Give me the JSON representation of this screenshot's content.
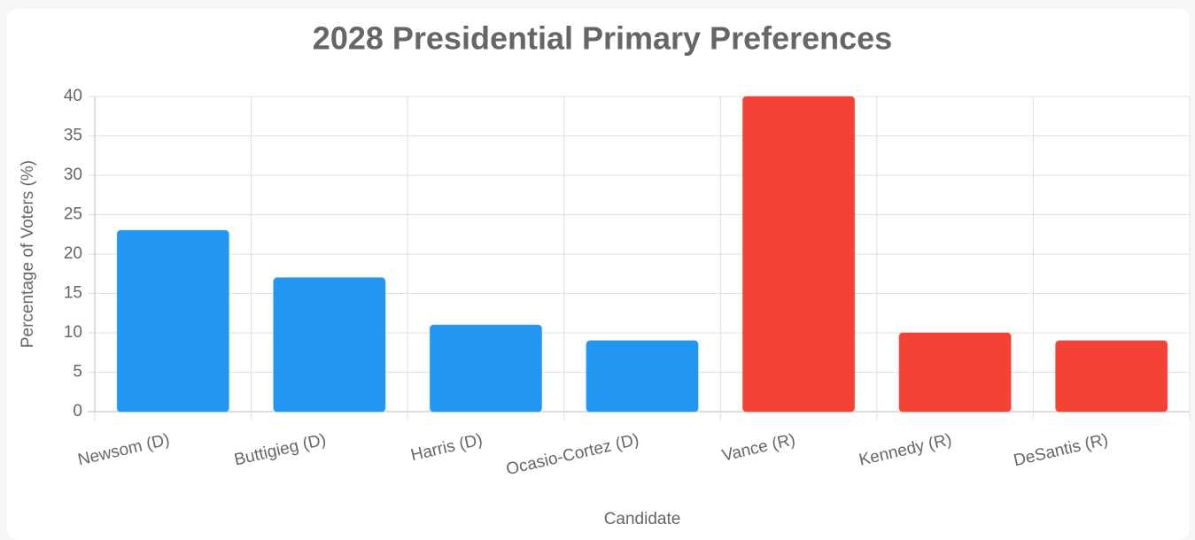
{
  "chart_data": {
    "type": "bar",
    "title": "2028 Presidential Primary Preferences",
    "x_label": "Candidate",
    "y_label": "Percentage of Voters (%)",
    "categories": [
      "Newsom (D)",
      "Buttigieg (D)",
      "Harris (D)",
      "Ocasio-Cortez (D)",
      "Vance (R)",
      "Kennedy (R)",
      "DeSantis (R)"
    ],
    "values": [
      23,
      17,
      11,
      9,
      40,
      10,
      9
    ],
    "colors": [
      "#2196f3",
      "#2196f3",
      "#2196f3",
      "#2196f3",
      "#f44336",
      "#f44336",
      "#f44336"
    ],
    "ylim": [
      0,
      40
    ],
    "yticks": [
      0,
      5,
      10,
      15,
      20,
      25,
      30,
      35,
      40
    ],
    "grid": true
  }
}
